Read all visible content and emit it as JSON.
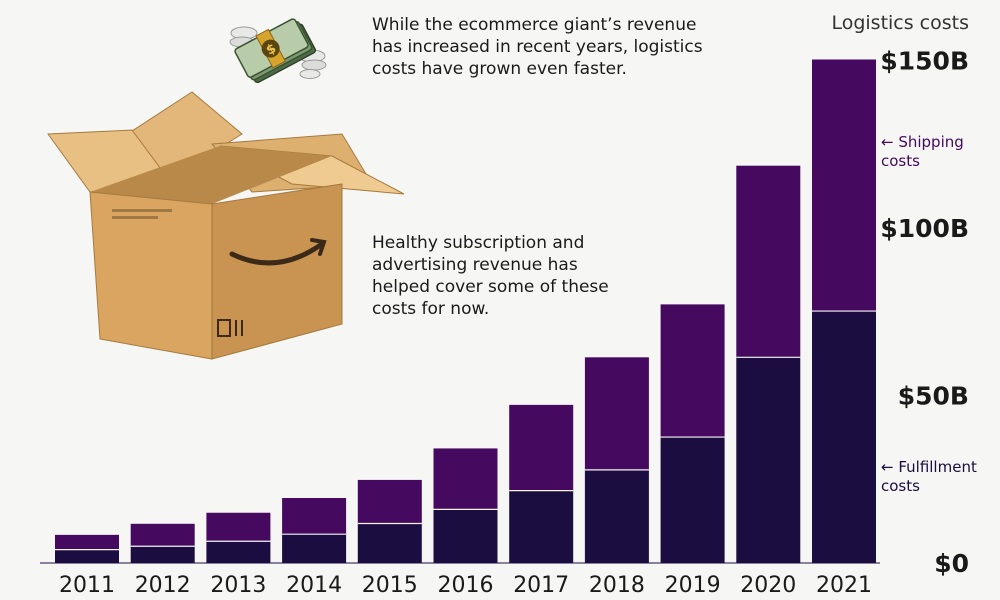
{
  "annotations": {
    "top": "While the ecommerce giant’s revenue has increased in recent years, logistics costs have grown even faster.",
    "middle": "Healthy subscription and advertising revenue has helped cover some of these costs for now."
  },
  "legend": {
    "shipping": "← Shipping costs",
    "fulfillment": "← Fulfillment costs"
  },
  "colors": {
    "shipping": "#45095f",
    "fulfillment": "#1c0d40",
    "shipping_label": "#45095f",
    "fulfillment_label": "#1c0d40"
  },
  "icons": {
    "money": "flying-money-icon",
    "box": "amazon-box-icon"
  },
  "chart_data": {
    "type": "bar",
    "stacked": true,
    "title": "",
    "ylabel": "Logistics costs",
    "xlabel": "",
    "categories": [
      "2011",
      "2012",
      "2013",
      "2014",
      "2015",
      "2016",
      "2017",
      "2018",
      "2019",
      "2020",
      "2021"
    ],
    "series": [
      {
        "name": "Fulfillment costs",
        "values": [
          4,
          5,
          6.5,
          8.6,
          11.8,
          16,
          21.6,
          27.8,
          37.6,
          61.4,
          75.2
        ]
      },
      {
        "name": "Shipping costs",
        "values": [
          4.4,
          6.7,
          8.5,
          10.8,
          13,
          18.2,
          25.6,
          33.6,
          39.6,
          57.2,
          75.1
        ]
      }
    ],
    "yticks": [
      {
        "value": 0,
        "label": "$0"
      },
      {
        "value": 50,
        "label": "$50B"
      },
      {
        "value": 100,
        "label": "$100B"
      },
      {
        "value": 150,
        "label": "$150B"
      }
    ],
    "ylim": [
      0,
      155
    ],
    "grid": false,
    "legend_position": "right"
  }
}
